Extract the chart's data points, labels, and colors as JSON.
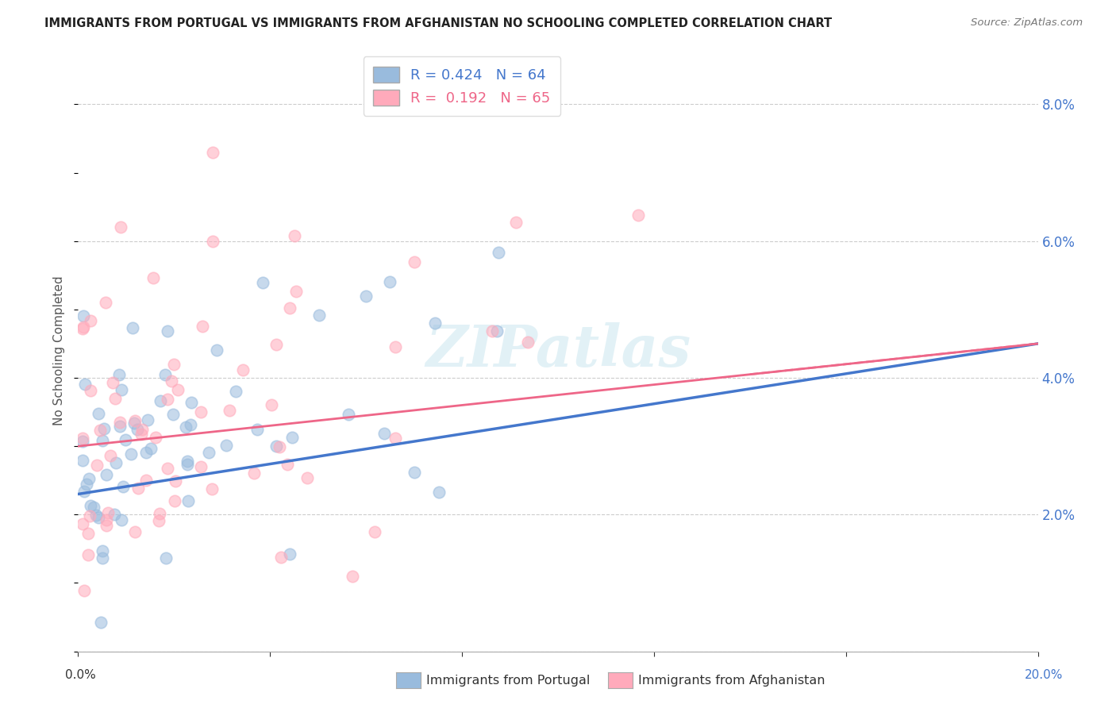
{
  "title": "IMMIGRANTS FROM PORTUGAL VS IMMIGRANTS FROM AFGHANISTAN NO SCHOOLING COMPLETED CORRELATION CHART",
  "source": "Source: ZipAtlas.com",
  "ylabel": "No Schooling Completed",
  "xlim": [
    0.0,
    0.2
  ],
  "ylim": [
    0.0,
    0.088
  ],
  "x_ticks": [
    0.0,
    0.04,
    0.08,
    0.12,
    0.16,
    0.2
  ],
  "y_ticks": [
    0.0,
    0.02,
    0.04,
    0.06,
    0.08
  ],
  "blue_R": 0.424,
  "blue_N": 64,
  "pink_R": 0.192,
  "pink_N": 65,
  "blue_color": "#99BBDD",
  "pink_color": "#FFAABB",
  "blue_line_color": "#4477CC",
  "pink_line_color": "#EE6688",
  "legend_blue_label": "R = 0.424   N = 64",
  "legend_pink_label": "R =  0.192   N = 65",
  "legend_label_blue": "Immigrants from Portugal",
  "legend_label_pink": "Immigrants from Afghanistan",
  "watermark": "ZIPatlas",
  "background_color": "#ffffff",
  "grid_color": "#cccccc",
  "title_color": "#222222",
  "axis_label_color": "#4477CC",
  "blue_scatter_seed": 42,
  "pink_scatter_seed": 99
}
